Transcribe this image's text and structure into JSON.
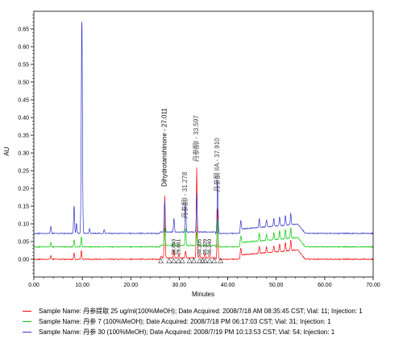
{
  "chart_data": {
    "type": "line",
    "xlabel": "Minutes",
    "ylabel": "AU",
    "xlim": [
      0,
      70
    ],
    "ylim": [
      -0.05,
      0.7
    ],
    "x_ticks": [
      "0.00",
      "10.00",
      "20.00",
      "30.00",
      "40.00",
      "50.00",
      "60.00",
      "70.00"
    ],
    "y_ticks": [
      "0.00",
      "0.05",
      "0.10",
      "0.15",
      "0.20",
      "0.25",
      "0.30",
      "0.35",
      "0.40",
      "0.45",
      "0.50",
      "0.55",
      "0.60",
      "0.65"
    ],
    "grid": false,
    "legend_position": "bottom",
    "series": [
      {
        "color": "#ff0000",
        "baseline": 0.0,
        "peaks": [
          [
            3.5,
            0.01
          ],
          [
            8.3,
            0.018
          ],
          [
            9.8,
            0.025
          ],
          [
            26.3,
            0.005
          ],
          [
            27.0,
            0.18
          ],
          [
            28.9,
            0.02
          ],
          [
            29.9,
            0.01
          ],
          [
            31.3,
            0.02
          ],
          [
            33.6,
            0.255
          ],
          [
            34.2,
            0.01
          ],
          [
            35.3,
            0.012
          ],
          [
            36.2,
            0.008
          ],
          [
            37.9,
            0.15
          ],
          [
            42.7,
            0.02
          ],
          [
            46.5,
            0.02
          ],
          [
            48.0,
            0.016
          ],
          [
            49.5,
            0.018
          ],
          [
            50.7,
            0.022
          ],
          [
            51.9,
            0.024
          ],
          [
            53.0,
            0.03
          ]
        ]
      },
      {
        "color": "#00cc00",
        "baseline": 0.035,
        "peaks": [
          [
            3.5,
            0.012
          ],
          [
            8.3,
            0.02
          ],
          [
            9.8,
            0.03
          ],
          [
            27.0,
            0.05
          ],
          [
            28.9,
            0.01
          ],
          [
            31.3,
            0.05
          ],
          [
            33.6,
            0.04
          ],
          [
            37.9,
            0.08
          ],
          [
            42.7,
            0.02
          ],
          [
            46.5,
            0.022
          ],
          [
            48.0,
            0.018
          ],
          [
            49.5,
            0.02
          ],
          [
            50.7,
            0.024
          ],
          [
            51.9,
            0.026
          ],
          [
            53.0,
            0.03
          ]
        ]
      },
      {
        "color": "#3333cc",
        "baseline": 0.073,
        "peaks": [
          [
            3.5,
            0.02
          ],
          [
            8.3,
            0.08
          ],
          [
            8.8,
            0.03
          ],
          [
            9.9,
            0.62
          ],
          [
            11.5,
            0.015
          ],
          [
            14.5,
            0.01
          ],
          [
            27.0,
            0.09
          ],
          [
            28.9,
            0.04
          ],
          [
            31.3,
            0.08
          ],
          [
            33.6,
            0.11
          ],
          [
            37.9,
            0.16
          ],
          [
            42.7,
            0.025
          ],
          [
            46.5,
            0.025
          ],
          [
            48.0,
            0.02
          ],
          [
            49.5,
            0.022
          ],
          [
            50.7,
            0.026
          ],
          [
            51.9,
            0.028
          ],
          [
            53.0,
            0.032
          ]
        ]
      }
    ],
    "annotations": [
      {
        "text": "Dihydrotanshinone - 27.011",
        "x": 27.011
      },
      {
        "text": "丹参酮I - 31.278",
        "x": 31.278
      },
      {
        "text": "丹参酮I - 33.597",
        "x": 33.597
      },
      {
        "text": "丹参酮 IIA - 37.910",
        "x": 37.91
      },
      {
        "text": "28.853",
        "x": 28.853
      },
      {
        "text": "29.861",
        "x": 29.861
      },
      {
        "text": "34.205",
        "x": 34.205
      },
      {
        "text": "35.329",
        "x": 35.329
      },
      {
        "text": "36.240",
        "x": 36.24
      }
    ]
  },
  "legend": [
    {
      "color": "#ff0000",
      "text": "Sample Name: 丹参提取 25 ug/ml(100%MeOH);  Date Acquired: 2008/7/18 AM 08:35:45 CST;  Vial: 11; Injection: 1"
    },
    {
      "color": "#00cc00",
      "text": "Sample Name: 丹参 7 (100%MeOH);  Date Acquired: 2008/7/18 PM 06:17:03 CST;  Vial: 31; Injection: 1"
    },
    {
      "color": "#3333cc",
      "text": "Sample Name: 丹参 30 (100%MeOH);  Date Acquired: 2008/7/19 PM 10:13:53 CST;  Vial: 54; Injection: 1"
    }
  ]
}
